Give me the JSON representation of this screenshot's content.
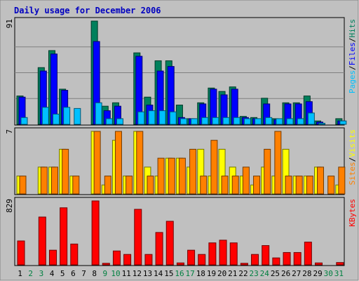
{
  "title": "Daily usage for December 2006",
  "colors": {
    "background": "#C0C0C0",
    "frame": "#808080",
    "title": "#0000C0",
    "hits": "#00805C",
    "files": "#0000FF",
    "pages": "#00C0FF",
    "visits": "#FFFF00",
    "sites": "#FF8000",
    "kbytes": "#FF0000",
    "weekday_label": "#000000",
    "weekend_label": "#008040"
  },
  "days": [
    "1",
    "2",
    "3",
    "4",
    "5",
    "6",
    "7",
    "8",
    "9",
    "10",
    "11",
    "12",
    "13",
    "14",
    "15",
    "16",
    "17",
    "18",
    "19",
    "20",
    "21",
    "22",
    "23",
    "24",
    "25",
    "26",
    "27",
    "28",
    "29",
    "30",
    "31"
  ],
  "weekend_days": [
    "2",
    "3",
    "9",
    "10",
    "16",
    "17",
    "23",
    "24",
    "30",
    "31"
  ],
  "chart_data": [
    {
      "type": "bar",
      "panel": "hits-files-pages",
      "ymax_label": "91",
      "ylim": [
        0,
        91
      ],
      "legend": [
        "Pages",
        "/",
        "Files",
        "/",
        "Hits"
      ],
      "categories": [
        "1",
        "2",
        "3",
        "4",
        "5",
        "6",
        "7",
        "8",
        "9",
        "10",
        "11",
        "12",
        "13",
        "14",
        "15",
        "16",
        "17",
        "18",
        "19",
        "20",
        "21",
        "22",
        "23",
        "24",
        "25",
        "26",
        "27",
        "28",
        "29",
        "30",
        "31"
      ],
      "series": [
        {
          "name": "Hits",
          "values": [
            25,
            0,
            50,
            65,
            31,
            0,
            0,
            91,
            16,
            19,
            0,
            63,
            24,
            56,
            56,
            17,
            5,
            19,
            32,
            29,
            33,
            7,
            6,
            23,
            5,
            19,
            19,
            25,
            3,
            0,
            5
          ]
        },
        {
          "name": "Files",
          "values": [
            24,
            0,
            47,
            62,
            30,
            0,
            0,
            73,
            12,
            16,
            0,
            60,
            17,
            47,
            51,
            6,
            5,
            18,
            31,
            26,
            31,
            6,
            5,
            18,
            4,
            18,
            18,
            20,
            2,
            0,
            3
          ]
        },
        {
          "name": "Pages",
          "values": [
            6,
            0,
            15,
            9,
            15,
            14,
            0,
            19,
            5,
            5,
            0,
            11,
            12,
            12,
            11,
            5,
            5,
            6,
            6,
            6,
            6,
            5,
            5,
            6,
            5,
            5,
            5,
            10,
            1,
            0,
            3
          ]
        }
      ]
    },
    {
      "type": "bar",
      "panel": "visits-sites",
      "ymax_label": "7",
      "ylim": [
        0,
        7
      ],
      "legend": [
        "Sites",
        "/",
        "Visits"
      ],
      "categories": [
        "1",
        "2",
        "3",
        "4",
        "5",
        "6",
        "7",
        "8",
        "9",
        "10",
        "11",
        "12",
        "13",
        "14",
        "15",
        "16",
        "17",
        "18",
        "19",
        "20",
        "21",
        "22",
        "23",
        "24",
        "25",
        "26",
        "27",
        "28",
        "29",
        "30",
        "31"
      ],
      "series": [
        {
          "name": "Visits",
          "values": [
            2,
            0,
            3,
            3,
            5,
            2,
            0,
            7,
            1,
            6,
            2,
            7,
            3,
            2,
            4,
            4,
            3,
            5,
            2,
            5,
            3,
            2,
            1,
            3,
            2,
            5,
            2,
            2,
            3,
            0,
            1
          ]
        },
        {
          "name": "Sites",
          "values": [
            2,
            0,
            3,
            3,
            5,
            2,
            0,
            7,
            2,
            7,
            2,
            7,
            2,
            4,
            4,
            4,
            5,
            2,
            6,
            2,
            2,
            3,
            2,
            5,
            7,
            2,
            2,
            2,
            3,
            2,
            3
          ]
        }
      ]
    },
    {
      "type": "bar",
      "panel": "kbytes",
      "ymax_label": "829",
      "ylim": [
        0,
        829
      ],
      "legend": [
        "KBytes"
      ],
      "categories": [
        "1",
        "2",
        "3",
        "4",
        "5",
        "6",
        "7",
        "8",
        "9",
        "10",
        "11",
        "12",
        "13",
        "14",
        "15",
        "16",
        "17",
        "18",
        "19",
        "20",
        "21",
        "22",
        "23",
        "24",
        "25",
        "26",
        "27",
        "28",
        "29",
        "30",
        "31"
      ],
      "series": [
        {
          "name": "KBytes",
          "values": [
            310,
            0,
            620,
            190,
            740,
            270,
            0,
            829,
            20,
            180,
            135,
            720,
            135,
            420,
            565,
            25,
            190,
            135,
            285,
            320,
            285,
            20,
            135,
            250,
            90,
            160,
            160,
            295,
            25,
            0,
            30
          ]
        }
      ]
    }
  ]
}
